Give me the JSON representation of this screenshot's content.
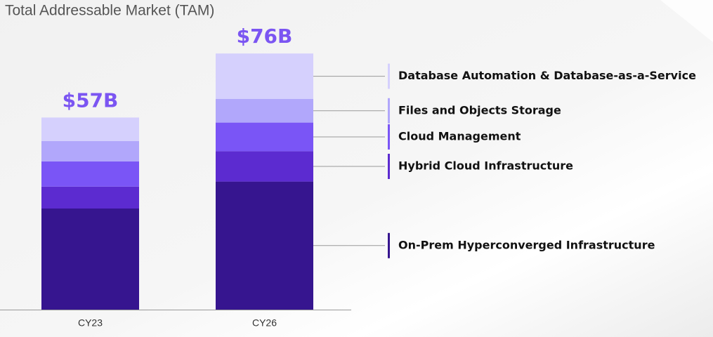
{
  "chart_data": {
    "type": "stacked_bar",
    "title": "Total Addressable Market (TAM)",
    "categories": [
      "CY23",
      "CY26"
    ],
    "series": [
      {
        "name": "On-Prem Hyperconverged Infrastructure",
        "color": "#36158f",
        "values": [
          30,
          38
        ]
      },
      {
        "name": "Hybrid Cloud Infrastructure",
        "color": "#5c2bd0",
        "values": [
          6.5,
          9
        ]
      },
      {
        "name": "Cloud Management",
        "color": "#7a55f6",
        "values": [
          7.5,
          8.5
        ]
      },
      {
        "name": "Files and Objects Storage",
        "color": "#b1a7fb",
        "values": [
          6,
          7
        ]
      },
      {
        "name": "Database Automation & Database-as-a-Service",
        "color": "#d5d0fd",
        "values": [
          7,
          13.5
        ]
      }
    ],
    "totals": {
      "values": [
        57,
        76
      ],
      "value_labels": [
        "$57B",
        "$76B"
      ]
    },
    "ylim": [
      0,
      80
    ]
  }
}
